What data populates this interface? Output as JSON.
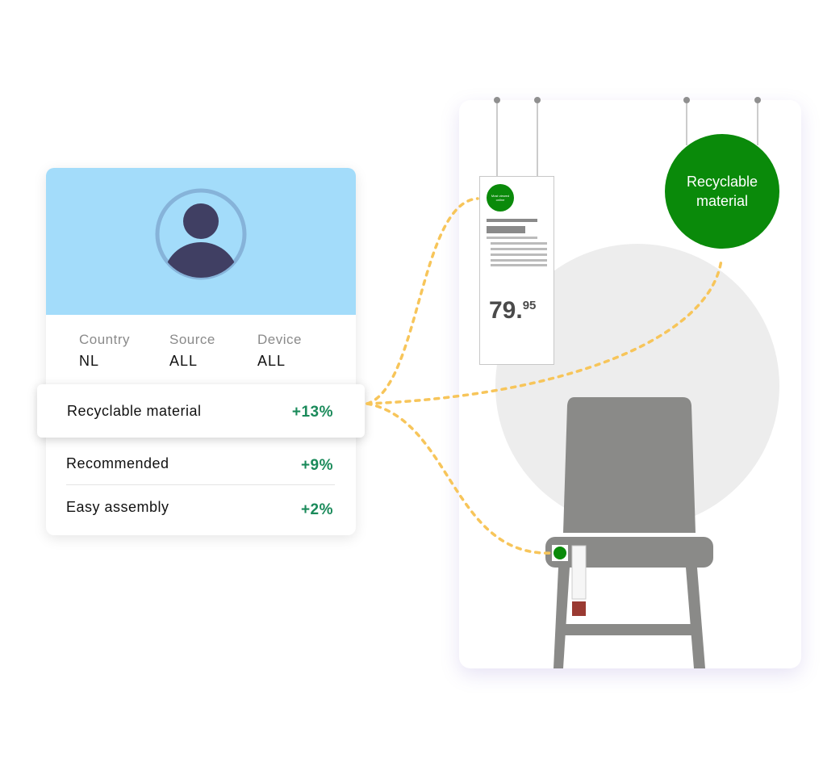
{
  "profile": {
    "filters": [
      {
        "label": "Country",
        "value": "NL"
      },
      {
        "label": "Source",
        "value": "ALL"
      },
      {
        "label": "Device",
        "value": "ALL"
      }
    ],
    "rows": [
      {
        "label": "Recyclable material",
        "value": "+13%"
      },
      {
        "label": "Recommended",
        "value": "+9%"
      },
      {
        "label": "Easy assembly",
        "value": "+2%"
      }
    ]
  },
  "scene": {
    "tag_badge": "Most viewed online",
    "price_main": "79.",
    "price_cents": "95",
    "recycle_badge": "Recyclable material"
  },
  "colors": {
    "accent_green": "#0a8a0a",
    "positive": "#1a8a5a",
    "connector": "#f7c55a",
    "header": "#a3dcfa"
  }
}
